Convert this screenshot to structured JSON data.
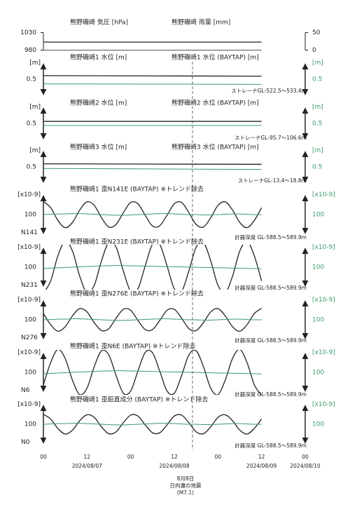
{
  "chart_data": [
    {
      "type": "line",
      "title": "熊野磯崎 気圧 [hPa]",
      "title2": "熊野磯崎 雨量 [mm]",
      "xlim": [
        0,
        72
      ],
      "x": [
        0,
        60
      ],
      "ylim": [
        975,
        1035
      ],
      "yticks": [
        980,
        1030
      ],
      "y2lim": [
        -5,
        55
      ],
      "y2ticks": [
        0,
        50
      ],
      "series": [
        {
          "color": "#222222",
          "values": [
            1003,
            1003
          ]
        },
        {
          "color": "#555555",
          "axis": "y2",
          "values": [
            0,
            0
          ]
        }
      ]
    },
    {
      "type": "line",
      "title": "熊野磯崎1 水位 [m]",
      "title2": "熊野磯崎1 水位 (BAYTAP) [m]",
      "y_unit": "[m]",
      "y2_unit": "[m]",
      "note": "ストレーナGL-522.5～533.4m",
      "xlim": [
        0,
        72
      ],
      "x": [
        0,
        60
      ],
      "ylim": [
        -0.3,
        0.3
      ],
      "y2lim": [
        -0.3,
        0.3
      ],
      "scale_bar": 0.5,
      "scale_bar_label": "0.5",
      "scale_bar2": 0.5,
      "scale_bar2_label": "0.5",
      "series": [
        {
          "color": "#222222",
          "values": [
            0.07,
            0.06
          ]
        },
        {
          "color": "#3d9a6a",
          "axis": "y2",
          "values": [
            -0.09,
            -0.1
          ]
        }
      ]
    },
    {
      "type": "line",
      "title": "熊野磯崎2 水位 [m]",
      "title2": "熊野磯崎2 水位 (BAYTAP) [m]",
      "y_unit": "[m]",
      "y2_unit": "[m]",
      "note": "ストレーナGL-95.7～106.6m",
      "xlim": [
        0,
        72
      ],
      "x": [
        0,
        60
      ],
      "ylim": [
        -0.3,
        0.3
      ],
      "y2lim": [
        -0.3,
        0.3
      ],
      "scale_bar": 0.5,
      "scale_bar_label": "0.5",
      "scale_bar2": 0.5,
      "scale_bar2_label": "0.5",
      "series": [
        {
          "color": "#222222",
          "values": [
            0.04,
            0.04
          ]
        },
        {
          "color": "#3d9a6a",
          "axis": "y2",
          "values": [
            -0.04,
            -0.04
          ]
        }
      ]
    },
    {
      "type": "line",
      "title": "熊野磯崎3 水位 [m]",
      "title2": "熊野磯崎3 水位 (BAYTAP) [m]",
      "y_unit": "[m]",
      "y2_unit": "[m]",
      "note": "ストレーナGL-13.4～18.8m",
      "xlim": [
        0,
        72
      ],
      "x": [
        0,
        60
      ],
      "ylim": [
        -0.3,
        0.3
      ],
      "y2lim": [
        -0.3,
        0.3
      ],
      "scale_bar": 0.5,
      "scale_bar_label": "0.5",
      "scale_bar2": 0.5,
      "scale_bar2_label": "0.5",
      "series": [
        {
          "color": "#222222",
          "values": [
            0.06,
            0.05
          ]
        },
        {
          "color": "#3d9a6a",
          "axis": "y2",
          "values": [
            -0.03,
            -0.05
          ]
        }
      ]
    },
    {
      "type": "line",
      "title": "熊野磯崎1 歪N141E (BAYTAP) ※トレンド除去",
      "y_unit": "[x10-9]",
      "y2_unit": "[x10-9]",
      "side_label": "N141",
      "note": "計器深度 GL-588.5～589.9m",
      "xlim": [
        0,
        72
      ],
      "x": [
        0,
        2,
        4,
        6,
        8,
        10,
        12,
        14,
        16,
        18,
        20,
        22,
        24,
        26,
        28,
        30,
        32,
        34,
        36,
        38,
        40,
        42,
        44,
        46,
        48,
        50,
        52,
        54,
        56,
        58,
        60
      ],
      "ylim": [
        -60,
        60
      ],
      "y2lim": [
        -60,
        60
      ],
      "scale_bar": 100,
      "scale_bar2": 100,
      "series": [
        {
          "color": "#222222",
          "values": [
            40,
            21,
            -18,
            -40,
            -24,
            14,
            39,
            28,
            -10,
            -38,
            -30,
            6,
            37,
            33,
            -2,
            -35,
            -34,
            -2,
            33,
            37,
            6,
            -30,
            -38,
            -10,
            28,
            39,
            14,
            -24,
            -40,
            -18,
            21
          ]
        },
        {
          "color": "#3d9a6a",
          "axis": "y2",
          "values": [
            0,
            1,
            2,
            2,
            3,
            3,
            2,
            1,
            0,
            -1,
            -2,
            -2,
            -1,
            0,
            1,
            2,
            3,
            3,
            2,
            1,
            0,
            0,
            -1,
            -1,
            0,
            1,
            2,
            2,
            1,
            0,
            0
          ]
        }
      ]
    },
    {
      "type": "line",
      "title": "熊野磯崎1 歪N231E (BAYTAP) ※トレンド除去",
      "y_unit": "[x10-9]",
      "y2_unit": "[x10-9]",
      "side_label": "N231",
      "note": "計器深度 GL-588.5～589.9m",
      "xlim": [
        0,
        72
      ],
      "x": [
        0,
        2,
        4,
        6,
        8,
        10,
        12,
        14,
        16,
        18,
        20,
        22,
        24,
        26,
        28,
        30,
        32,
        34,
        36,
        38,
        40,
        42,
        44,
        46,
        48,
        50,
        52,
        54,
        56,
        58,
        60
      ],
      "ylim": [
        -60,
        60
      ],
      "y2lim": [
        -60,
        60
      ],
      "scale_bar": 100,
      "scale_bar2": 100,
      "series": [
        {
          "color": "#222222",
          "values": [
            -80,
            -42,
            35,
            79,
            49,
            -28,
            -78,
            -55,
            20,
            76,
            61,
            -12,
            -74,
            -66,
            4,
            70,
            69,
            4,
            -66,
            -74,
            -12,
            61,
            76,
            20,
            -55,
            -78,
            -28,
            49,
            79,
            35,
            -42
          ]
        },
        {
          "color": "#3d9a6a",
          "axis": "y2",
          "values": [
            -4,
            -3,
            -2,
            -1,
            0,
            1,
            2,
            3,
            4,
            4,
            5,
            5,
            4,
            4,
            3,
            3,
            2,
            2,
            1,
            1,
            0,
            0,
            -1,
            -1,
            -2,
            -2,
            -3,
            -3,
            -4,
            -4,
            -5
          ]
        }
      ]
    },
    {
      "type": "line",
      "title": "熊野磯崎1 歪N276E (BAYTAP) ※トレンド除去",
      "y_unit": "[x10-9]",
      "y2_unit": "[x10-9]",
      "side_label": "N276",
      "note": "計器深度 GL-588.5～589.9m",
      "xlim": [
        0,
        72
      ],
      "x": [
        0,
        2,
        4,
        6,
        8,
        10,
        12,
        14,
        16,
        18,
        20,
        22,
        24,
        26,
        28,
        30,
        32,
        34,
        36,
        38,
        40,
        42,
        44,
        46,
        48,
        50,
        52,
        54,
        56,
        58,
        60
      ],
      "ylim": [
        -60,
        60
      ],
      "y2lim": [
        -60,
        60
      ],
      "scale_bar": 100,
      "scale_bar2": 100,
      "series": [
        {
          "color": "#222222",
          "values": [
            19,
            -15,
            -35,
            -21,
            12,
            34,
            24,
            -9,
            -33,
            -27,
            5,
            32,
            29,
            -2,
            -30,
            -30,
            -2,
            29,
            32,
            5,
            -27,
            -33,
            -9,
            24,
            34,
            12,
            -21,
            -35,
            -15,
            19,
            35
          ]
        },
        {
          "color": "#3d9a6a",
          "axis": "y2",
          "values": [
            0,
            1,
            2,
            2,
            3,
            3,
            2,
            1,
            0,
            -1,
            -2,
            -2,
            -1,
            0,
            1,
            2,
            3,
            3,
            2,
            1,
            0,
            0,
            -1,
            -1,
            0,
            1,
            2,
            2,
            1,
            0,
            0
          ]
        }
      ]
    },
    {
      "type": "line",
      "title": "熊野磯崎1 歪N6E (BAYTAP) ※トレンド除去",
      "y_unit": "[x10-9]",
      "y2_unit": "[x10-9]",
      "side_label": "N6",
      "note": "計器深度 GL-588.5～589.9m",
      "xlim": [
        0,
        72
      ],
      "x": [
        0,
        2,
        4,
        6,
        8,
        10,
        12,
        14,
        16,
        18,
        20,
        22,
        24,
        26,
        28,
        30,
        32,
        34,
        36,
        38,
        40,
        42,
        44,
        46,
        48,
        50,
        52,
        54,
        56,
        58,
        60
      ],
      "ylim": [
        -60,
        60
      ],
      "y2lim": [
        -60,
        60
      ],
      "scale_bar": 100,
      "scale_bar2": 100,
      "series": [
        {
          "color": "#222222",
          "values": [
            -38,
            30,
            70,
            42,
            -24,
            -68,
            -48,
            18,
            66,
            53,
            -10,
            -64,
            -57,
            4,
            61,
            60,
            4,
            -57,
            -64,
            -10,
            53,
            66,
            18,
            -48,
            -68,
            -24,
            42,
            70,
            30,
            -38,
            -70
          ]
        },
        {
          "color": "#3d9a6a",
          "axis": "y2",
          "values": [
            -4,
            -3,
            -2,
            -1,
            0,
            1,
            2,
            3,
            4,
            4,
            5,
            5,
            4,
            4,
            3,
            3,
            2,
            2,
            1,
            1,
            0,
            0,
            -1,
            -1,
            -2,
            -2,
            -3,
            -3,
            -4,
            -4,
            -5
          ]
        }
      ]
    },
    {
      "type": "line",
      "title": "熊野磯崎1 歪鉛直成分 (BAYTAP) ※トレンド除去",
      "y_unit": "[x10-9]",
      "y2_unit": "[x10-9]",
      "side_label": "N0",
      "note": "計器深度 GL-588.5～589.9m",
      "xlim": [
        0,
        72
      ],
      "x": [
        0,
        2,
        4,
        6,
        8,
        10,
        12,
        14,
        16,
        18,
        20,
        22,
        24,
        26,
        28,
        30,
        32,
        34,
        36,
        38,
        40,
        42,
        44,
        46,
        48,
        50,
        52,
        54,
        56,
        58,
        60
      ],
      "ylim": [
        -60,
        60
      ],
      "y2lim": [
        -60,
        60
      ],
      "scale_bar": 100,
      "scale_bar2": 100,
      "series": [
        {
          "color": "#222222",
          "values": [
            30,
            16,
            -13,
            -30,
            -18,
            11,
            29,
            21,
            -8,
            -29,
            -23,
            5,
            28,
            25,
            -2,
            -26,
            -26,
            -2,
            25,
            28,
            5,
            -23,
            -29,
            -8,
            21,
            29,
            11,
            -18,
            -30,
            -13,
            16
          ]
        },
        {
          "color": "#3d9a6a",
          "axis": "y2",
          "values": [
            0,
            1,
            2,
            2,
            3,
            3,
            2,
            1,
            0,
            -1,
            -2,
            -2,
            -1,
            0,
            1,
            2,
            3,
            3,
            2,
            1,
            0,
            0,
            -1,
            -1,
            0,
            1,
            2,
            2,
            1,
            0,
            0
          ]
        }
      ],
      "xticks": [
        {
          "value": 0,
          "label": "00"
        },
        12,
        {
          "value": 24,
          "label": "00"
        },
        {
          "value": 36,
          "label": "12"
        },
        {
          "value": 48,
          "label": "00"
        },
        {
          "value": 60,
          "label": "12"
        },
        {
          "value": 72,
          "label": "00"
        }
      ],
      "date_ticks": [
        {
          "value": 12,
          "label": "2024/08/07"
        },
        {
          "value": 36,
          "label": "2024/08/08"
        },
        {
          "value": 60,
          "label": "2024/08/09"
        },
        {
          "value": 72,
          "label": "2024/08/10"
        }
      ],
      "event": {
        "x": 41,
        "lines": [
          "8月8日",
          "日向灘の地震",
          "(M7.1)"
        ]
      }
    }
  ]
}
